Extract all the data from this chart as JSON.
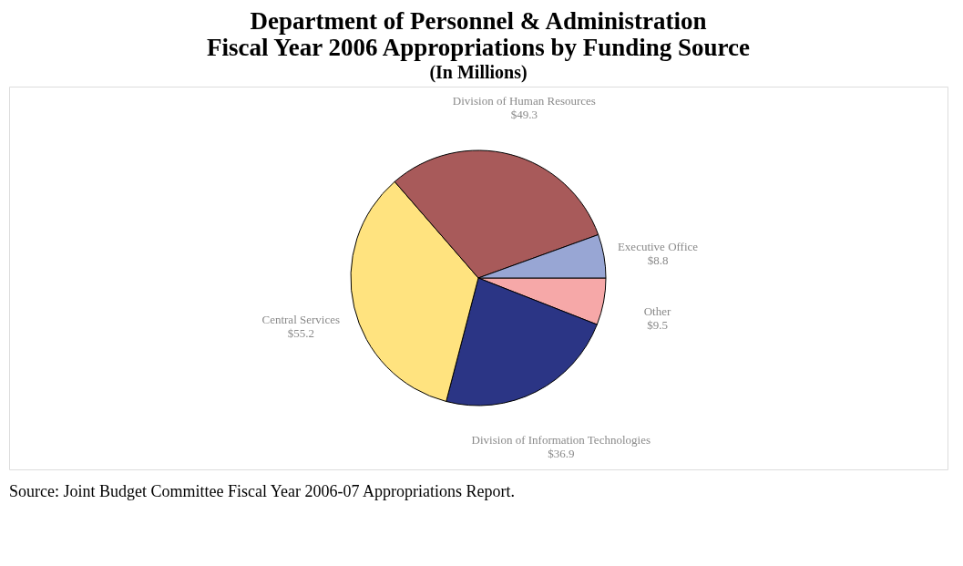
{
  "chart_data": {
    "type": "pie",
    "title": [
      "Department of Personnel & Administration",
      "Fiscal Year 2006 Appropriations by Funding Source"
    ],
    "subtitle": "(In Millions)",
    "categories": [
      "Other",
      "Division of Information Technologies",
      "Central Services",
      "Division of Human Resources",
      "Executive Office"
    ],
    "values": [
      9.5,
      36.9,
      55.2,
      49.3,
      8.8
    ],
    "value_labels": [
      "$9.5",
      "$36.9",
      "$55.2",
      "$49.3",
      "$8.8"
    ],
    "colors": [
      "#f6a8a8",
      "#2b3585",
      "#ffe37f",
      "#a85a5a",
      "#98a6d4"
    ],
    "legend": false,
    "annotations": [
      "Source:  Joint Budget Committee Fiscal Year 2006-07 Appropriations Report."
    ]
  }
}
